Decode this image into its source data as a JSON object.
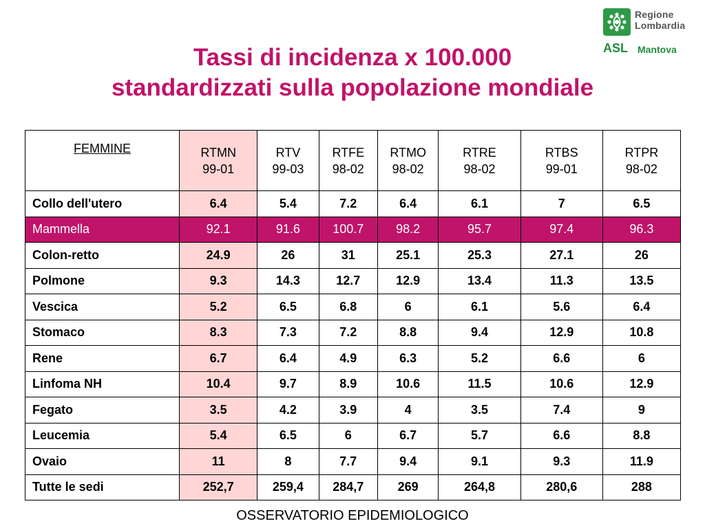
{
  "title": {
    "line1": "Tassi di incidenza x 100.000",
    "line2": "standardizzati sulla popolazione mondiale"
  },
  "logo": {
    "name_line1": "Regione",
    "name_line2": "Lombardia",
    "asl": "ASL",
    "city": "Mantova",
    "brand_color": "#2e9a47"
  },
  "accent_color": "#c0136a",
  "highlight_column_color": "#ffd5d5",
  "table": {
    "header": [
      {
        "line1": "FEMMINE",
        "line2": ""
      },
      {
        "line1": "RTMN",
        "line2": "99-01"
      },
      {
        "line1": "RTV",
        "line2": "99-03"
      },
      {
        "line1": "RTFE",
        "line2": "98-02"
      },
      {
        "line1": "RTMO",
        "line2": "98-02"
      },
      {
        "line1": "RTRE",
        "line2": "98-02"
      },
      {
        "line1": "RTBS",
        "line2": "99-01"
      },
      {
        "line1": "RTPR",
        "line2": "98-02"
      }
    ],
    "rows": [
      {
        "label": "Collo dell'utero",
        "values": [
          "6.4",
          "5.4",
          "7.2",
          "6.4",
          "6.1",
          "7",
          "6.5"
        ]
      },
      {
        "label": "Mammella",
        "values": [
          "92.1",
          "91.6",
          "100.7",
          "98.2",
          "95.7",
          "97.4",
          "96.3"
        ]
      },
      {
        "label": "Colon-retto",
        "values": [
          "24.9",
          "26",
          "31",
          "25.1",
          "25.3",
          "27.1",
          "26"
        ]
      },
      {
        "label": "Polmone",
        "values": [
          "9.3",
          "14.3",
          "12.7",
          "12.9",
          "13.4",
          "11.3",
          "13.5"
        ]
      },
      {
        "label": "Vescica",
        "values": [
          "5.2",
          "6.5",
          "6.8",
          "6",
          "6.1",
          "5.6",
          "6.4"
        ]
      },
      {
        "label": "Stomaco",
        "values": [
          "8.3",
          "7.3",
          "7.2",
          "8.8",
          "9.4",
          "12.9",
          "10.8"
        ]
      },
      {
        "label": "Rene",
        "values": [
          "6.7",
          "6.4",
          "4.9",
          "6.3",
          "5.2",
          "6.6",
          "6"
        ]
      },
      {
        "label": "Linfoma NH",
        "values": [
          "10.4",
          "9.7",
          "8.9",
          "10.6",
          "11.5",
          "10.6",
          "12.9"
        ]
      },
      {
        "label": "Fegato",
        "values": [
          "3.5",
          "4.2",
          "3.9",
          "4",
          "3.5",
          "7.4",
          "9"
        ]
      },
      {
        "label": "Leucemia",
        "values": [
          "5.4",
          "6.5",
          "6",
          "6.7",
          "5.7",
          "6.6",
          "8.8"
        ]
      },
      {
        "label": "Ovaio",
        "values": [
          "11",
          "8",
          "7.7",
          "9.4",
          "9.1",
          "9.3",
          "11.9"
        ]
      },
      {
        "label": "Tutte le sedi",
        "values": [
          "252,7",
          "259,4",
          "284,7",
          "269",
          "264,8",
          "280,6",
          "288"
        ]
      }
    ]
  },
  "footer": "OSSERVATORIO EPIDEMIOLOGICO"
}
